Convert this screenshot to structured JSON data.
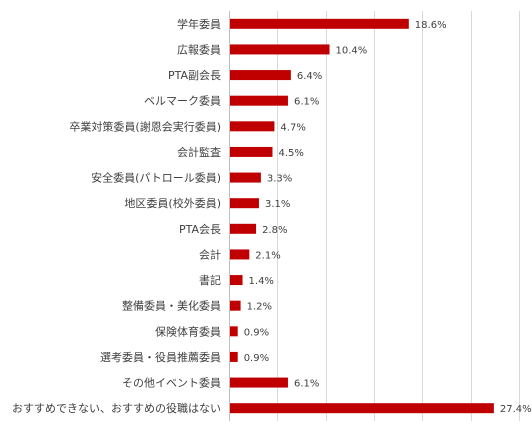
{
  "chart_data": {
    "type": "bar",
    "orientation": "horizontal",
    "categories": [
      "学年委員",
      "広報委員",
      "PTA副会長",
      "ベルマーク委員",
      "卒業対策委員(謝恩会実行委員)",
      "会計監査",
      "安全委員(パトロール委員)",
      "地区委員(校外委員)",
      "PTA会長",
      "会計",
      "書記",
      "整備委員・美化委員",
      "保険体育委員",
      "選考委員・役員推薦委員",
      "その他イベント委員",
      "おすすめできない、おすすめの役職はない"
    ],
    "values": [
      18.6,
      10.4,
      6.4,
      6.1,
      4.7,
      4.5,
      3.3,
      3.1,
      2.8,
      2.1,
      1.4,
      1.2,
      0.9,
      0.9,
      6.1,
      27.4
    ],
    "value_labels": [
      "18.6%",
      "10.4%",
      "6.4%",
      "6.1%",
      "4.7%",
      "4.5%",
      "3.3%",
      "3.1%",
      "2.8%",
      "2.1%",
      "1.4%",
      "1.2%",
      "0.9%",
      "0.9%",
      "6.1%",
      "27.4%"
    ],
    "xlim": [
      0,
      30
    ],
    "grid_step": 5,
    "grid": true,
    "bar_color": "#c00000",
    "title": "",
    "xlabel": "",
    "ylabel": ""
  }
}
